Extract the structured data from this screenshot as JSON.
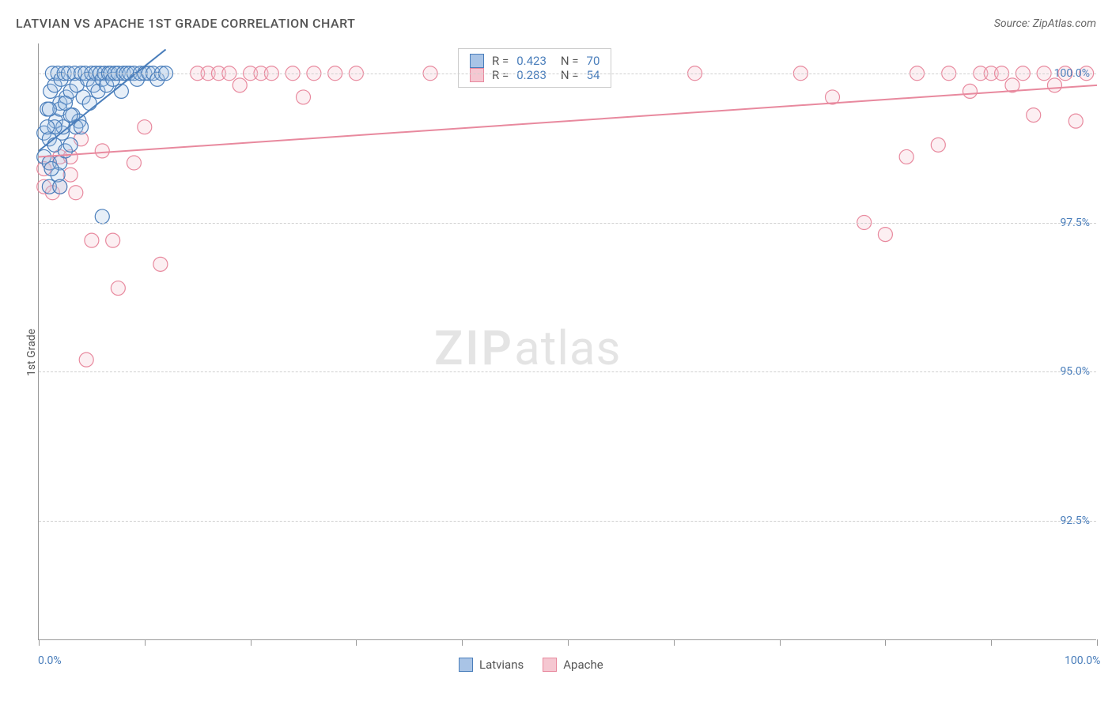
{
  "title": "LATVIAN VS APACHE 1ST GRADE CORRELATION CHART",
  "source": "Source: ZipAtlas.com",
  "y_axis_label": "1st Grade",
  "chart": {
    "type": "scatter",
    "xlim": [
      0,
      100
    ],
    "ylim": [
      90.5,
      100.5
    ],
    "x_ticks": [
      0,
      10,
      20,
      30,
      40,
      50,
      60,
      70,
      80,
      90,
      100
    ],
    "x_tick_labels": {
      "0": "0.0%",
      "100": "100.0%"
    },
    "y_ticks": [
      92.5,
      95.0,
      97.5,
      100.0
    ],
    "y_tick_labels": [
      "92.5%",
      "95.0%",
      "97.5%",
      "100.0%"
    ],
    "background_color": "#ffffff",
    "grid_color": "#d0d0d0",
    "axis_color": "#999999",
    "text_color": "#555555",
    "value_color": "#4a7ebb",
    "marker_radius": 9,
    "marker_stroke_width": 1.2,
    "marker_fill_opacity": 0.28,
    "trend_line_width": 2,
    "series": [
      {
        "name": "Latvians",
        "color": "#4a7ebb",
        "fill": "#a9c4e6",
        "R": "0.423",
        "N": "70",
        "trend": {
          "x1": 0,
          "y1": 98.7,
          "x2": 12,
          "y2": 100.4
        },
        "points": [
          [
            0.5,
            99.0
          ],
          [
            0.8,
            99.4
          ],
          [
            1.0,
            98.9
          ],
          [
            1.1,
            99.7
          ],
          [
            1.3,
            100.0
          ],
          [
            1.5,
            99.8
          ],
          [
            1.6,
            99.2
          ],
          [
            1.8,
            100.0
          ],
          [
            2.0,
            99.5
          ],
          [
            2.1,
            99.9
          ],
          [
            2.2,
            99.0
          ],
          [
            2.4,
            100.0
          ],
          [
            2.6,
            99.6
          ],
          [
            2.8,
            100.0
          ],
          [
            3.0,
            99.7
          ],
          [
            3.2,
            99.3
          ],
          [
            3.4,
            100.0
          ],
          [
            3.6,
            99.8
          ],
          [
            3.8,
            99.2
          ],
          [
            4.0,
            100.0
          ],
          [
            4.2,
            99.6
          ],
          [
            4.4,
            100.0
          ],
          [
            4.6,
            99.9
          ],
          [
            4.8,
            99.5
          ],
          [
            5.0,
            100.0
          ],
          [
            5.2,
            99.8
          ],
          [
            5.4,
            100.0
          ],
          [
            5.6,
            99.7
          ],
          [
            5.8,
            100.0
          ],
          [
            6.0,
            99.9
          ],
          [
            6.2,
            100.0
          ],
          [
            6.4,
            99.8
          ],
          [
            6.6,
            100.0
          ],
          [
            6.8,
            100.0
          ],
          [
            7.0,
            99.9
          ],
          [
            7.2,
            100.0
          ],
          [
            7.5,
            100.0
          ],
          [
            7.8,
            99.7
          ],
          [
            8.0,
            100.0
          ],
          [
            8.3,
            100.0
          ],
          [
            8.6,
            100.0
          ],
          [
            9.0,
            100.0
          ],
          [
            9.3,
            99.9
          ],
          [
            9.6,
            100.0
          ],
          [
            10.0,
            100.0
          ],
          [
            10.4,
            100.0
          ],
          [
            10.8,
            100.0
          ],
          [
            11.2,
            99.9
          ],
          [
            11.6,
            100.0
          ],
          [
            12.0,
            100.0
          ],
          [
            0.5,
            98.6
          ],
          [
            1.0,
            98.5
          ],
          [
            1.5,
            98.8
          ],
          [
            2.0,
            98.5
          ],
          [
            2.5,
            98.7
          ],
          [
            1.8,
            98.3
          ],
          [
            3.0,
            98.8
          ],
          [
            1.2,
            98.4
          ],
          [
            2.3,
            99.1
          ],
          [
            3.5,
            99.1
          ],
          [
            4.0,
            99.1
          ],
          [
            2.0,
            99.4
          ],
          [
            3.0,
            99.3
          ],
          [
            1.5,
            99.1
          ],
          [
            1.0,
            99.4
          ],
          [
            2.5,
            99.5
          ],
          [
            0.8,
            99.1
          ],
          [
            6.0,
            97.6
          ],
          [
            1.0,
            98.1
          ],
          [
            2.0,
            98.1
          ]
        ]
      },
      {
        "name": "Apache",
        "color": "#e8899e",
        "fill": "#f5c7d1",
        "R": "0.283",
        "N": "54",
        "trend": {
          "x1": 0,
          "y1": 98.6,
          "x2": 100,
          "y2": 99.8
        },
        "points": [
          [
            0.5,
            98.1
          ],
          [
            1.0,
            98.5
          ],
          [
            1.3,
            98.0
          ],
          [
            2.0,
            98.1
          ],
          [
            3.0,
            98.3
          ],
          [
            3.5,
            98.0
          ],
          [
            5.0,
            97.2
          ],
          [
            7.0,
            97.2
          ],
          [
            7.5,
            96.4
          ],
          [
            11.5,
            96.8
          ],
          [
            4.5,
            95.2
          ],
          [
            9.0,
            98.5
          ],
          [
            10.0,
            99.1
          ],
          [
            15.0,
            100.0
          ],
          [
            16.0,
            100.0
          ],
          [
            17.0,
            100.0
          ],
          [
            18.0,
            100.0
          ],
          [
            19.0,
            99.8
          ],
          [
            20.0,
            100.0
          ],
          [
            21.0,
            100.0
          ],
          [
            22.0,
            100.0
          ],
          [
            24.0,
            100.0
          ],
          [
            25.0,
            99.6
          ],
          [
            26.0,
            100.0
          ],
          [
            28.0,
            100.0
          ],
          [
            30.0,
            100.0
          ],
          [
            37.0,
            100.0
          ],
          [
            48.0,
            100.0
          ],
          [
            62.0,
            100.0
          ],
          [
            72.0,
            100.0
          ],
          [
            75.0,
            99.6
          ],
          [
            78.0,
            97.5
          ],
          [
            80.0,
            97.3
          ],
          [
            82.0,
            98.6
          ],
          [
            83.0,
            100.0
          ],
          [
            85.0,
            98.8
          ],
          [
            86.0,
            100.0
          ],
          [
            88.0,
            99.7
          ],
          [
            89.0,
            100.0
          ],
          [
            90.0,
            100.0
          ],
          [
            91.0,
            100.0
          ],
          [
            92.0,
            99.8
          ],
          [
            93.0,
            100.0
          ],
          [
            94.0,
            99.3
          ],
          [
            95.0,
            100.0
          ],
          [
            96.0,
            99.8
          ],
          [
            97.0,
            100.0
          ],
          [
            98.0,
            99.2
          ],
          [
            99.0,
            100.0
          ],
          [
            0.5,
            98.4
          ],
          [
            2.0,
            98.6
          ],
          [
            3.0,
            98.6
          ],
          [
            4.0,
            98.9
          ],
          [
            6.0,
            98.7
          ]
        ]
      }
    ]
  },
  "legend_bottom": [
    "Latvians",
    "Apache"
  ],
  "watermark": {
    "zip": "ZIP",
    "atlas": "atlas"
  }
}
